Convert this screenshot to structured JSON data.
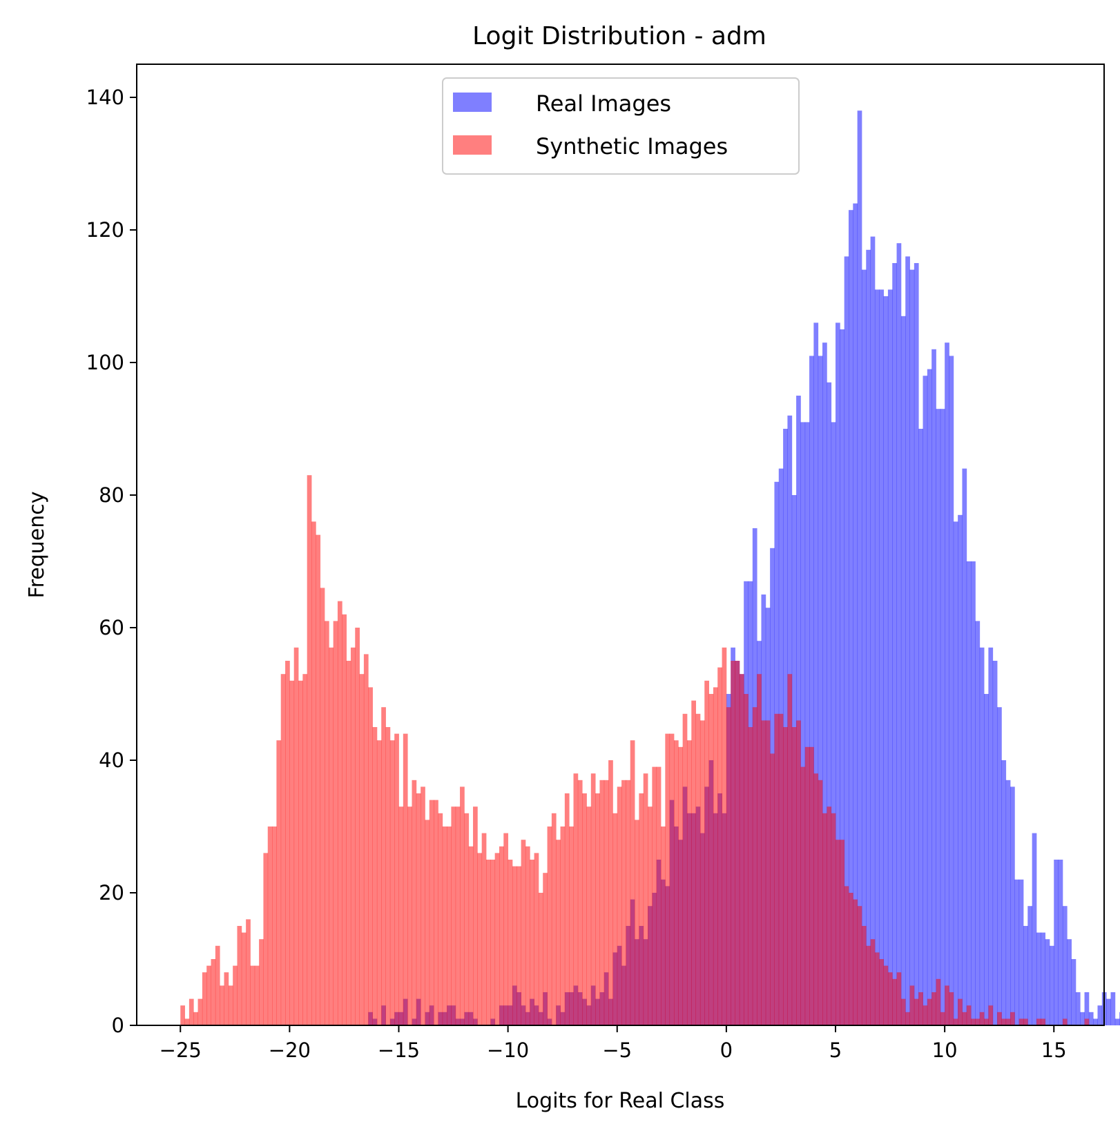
{
  "chart_data": {
    "type": "histogram",
    "title": "Logit Distribution - adm",
    "xlabel": "Logits for Real Class",
    "ylabel": "Frequency",
    "xlim": [
      -27.0,
      17.3
    ],
    "ylim": [
      0,
      145
    ],
    "xticks": [
      -25,
      -20,
      -15,
      -10,
      -5,
      0,
      5,
      10,
      15
    ],
    "xtick_labels": [
      "−25",
      "−20",
      "−15",
      "−10",
      "−5",
      "0",
      "5",
      "10",
      "15"
    ],
    "yticks": [
      0,
      20,
      40,
      60,
      80,
      100,
      120,
      140
    ],
    "ytick_labels": [
      "0",
      "20",
      "40",
      "60",
      "80",
      "100",
      "120",
      "140"
    ],
    "grid": false,
    "legend_position": "top-center",
    "bin_width": 0.2,
    "series": [
      {
        "name": "Real Images",
        "color": "#0000ff",
        "alpha": 0.5,
        "x_start": -23.0,
        "counts": [
          0,
          0,
          0,
          0,
          0,
          0,
          0,
          0,
          0,
          0,
          0,
          0,
          0,
          0,
          0,
          0,
          0,
          0,
          0,
          0,
          0,
          0,
          0,
          0,
          0,
          0,
          0,
          0,
          0,
          0,
          0,
          0,
          0,
          2,
          1,
          0,
          3,
          0,
          1,
          2,
          2,
          4,
          0,
          1,
          4,
          0,
          2,
          3,
          0,
          2,
          2,
          3,
          3,
          1,
          1,
          2,
          2,
          1,
          0,
          0,
          0,
          1,
          0,
          3,
          3,
          3,
          6,
          5,
          3,
          2,
          4,
          3,
          2,
          5,
          1,
          0,
          3,
          2,
          5,
          5,
          6,
          5,
          4,
          3,
          6,
          4,
          5,
          8,
          4,
          11,
          12,
          9,
          15,
          19,
          13,
          15,
          13,
          18,
          20,
          25,
          22,
          21,
          34,
          30,
          28,
          36,
          32,
          32,
          33,
          29,
          36,
          40,
          32,
          35,
          32,
          50,
          57,
          55,
          53,
          67,
          67,
          75,
          58,
          65,
          63,
          72,
          82,
          84,
          90,
          92,
          80,
          95,
          91,
          91,
          101,
          106,
          101,
          103,
          97,
          91,
          106,
          105,
          116,
          123,
          124,
          138,
          114,
          117,
          119,
          111,
          111,
          110,
          111,
          115,
          118,
          107,
          116,
          114,
          115,
          90,
          98,
          99,
          102,
          93,
          93,
          103,
          101,
          76,
          77,
          84,
          70,
          70,
          61,
          57,
          50,
          57,
          55,
          48,
          40,
          37,
          36,
          22,
          22,
          15,
          18,
          29,
          14,
          14,
          13,
          12,
          25,
          25,
          18,
          13,
          10,
          5,
          2,
          5,
          2,
          1,
          3,
          5,
          4,
          5,
          1,
          2,
          0,
          2,
          2,
          1,
          1,
          3,
          2,
          0,
          0,
          1,
          0,
          0,
          0
        ],
        "overlap_note": ""
      },
      {
        "name": "Synthetic Images",
        "color": "#ff0000",
        "alpha": 0.5,
        "x_start": -25.0,
        "counts": [
          3,
          1,
          4,
          2,
          4,
          8,
          9,
          10,
          12,
          6,
          8,
          6,
          9,
          15,
          14,
          16,
          9,
          9,
          13,
          26,
          30,
          30,
          43,
          53,
          55,
          52,
          57,
          52,
          53,
          83,
          76,
          74,
          66,
          61,
          57,
          61,
          64,
          62,
          55,
          57,
          60,
          53,
          56,
          51,
          45,
          43,
          48,
          45,
          43,
          44,
          33,
          44,
          33,
          37,
          35,
          36,
          31,
          34,
          34,
          32,
          30,
          30,
          33,
          33,
          36,
          32,
          27,
          33,
          26,
          29,
          25,
          25,
          26,
          27,
          29,
          25,
          24,
          24,
          28,
          27,
          25,
          26,
          20,
          23,
          30,
          32,
          28,
          30,
          35,
          30,
          38,
          37,
          35,
          33,
          38,
          35,
          37,
          37,
          40,
          32,
          36,
          37,
          37,
          43,
          31,
          35,
          38,
          33,
          39,
          39,
          30,
          44,
          44,
          43,
          42,
          47,
          43,
          49,
          47,
          46,
          52,
          50,
          51,
          54,
          57,
          48,
          55,
          55,
          53,
          50,
          45,
          48,
          53,
          46,
          46,
          41,
          47,
          47,
          45,
          53,
          45,
          46,
          39,
          42,
          42,
          38,
          37,
          32,
          33,
          32,
          28,
          28,
          21,
          20,
          19,
          18,
          15,
          12,
          13,
          11,
          10,
          9,
          8,
          7,
          8,
          4,
          2,
          6,
          4,
          5,
          3,
          4,
          5,
          7,
          2,
          6,
          5,
          1,
          4,
          2,
          3,
          1,
          1,
          2,
          1,
          3,
          0,
          2,
          1,
          1,
          2,
          0,
          1,
          1,
          0,
          0,
          1,
          1,
          0,
          0,
          0,
          0,
          1,
          0,
          0,
          0,
          0,
          1
        ]
      }
    ]
  }
}
